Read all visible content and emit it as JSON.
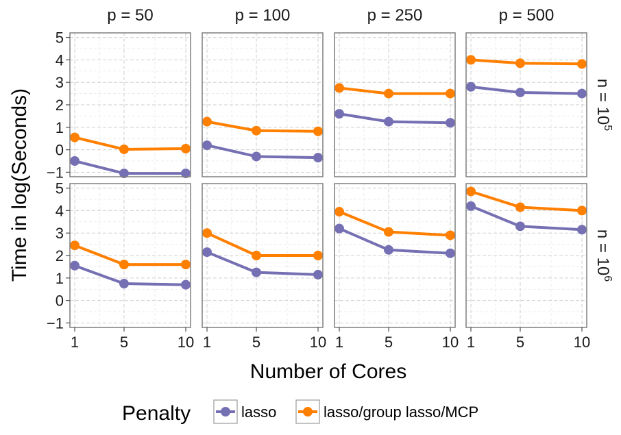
{
  "chart_data": {
    "type": "line",
    "xlabel": "Number of Cores",
    "ylabel": "Time in log(Seconds)",
    "x": [
      1,
      5,
      10
    ],
    "x_ticks": [
      "1",
      "5",
      "10"
    ],
    "ylim": [
      -1.2,
      5.2
    ],
    "y_ticks": [
      "-1",
      "0",
      "1",
      "2",
      "3",
      "4",
      "5"
    ],
    "grid": true,
    "columns": [
      "p = 50",
      "p = 100",
      "p = 250",
      "p = 500"
    ],
    "rows": [
      {
        "base": "n = 10",
        "exp": "5"
      },
      {
        "base": "n = 10",
        "exp": "6"
      }
    ],
    "legend": {
      "title": "Penalty",
      "position": "bottom",
      "entries": [
        "lasso",
        "lasso/group lasso/MCP"
      ]
    },
    "series": [
      {
        "name": "lasso",
        "color": "#7570b3",
        "panels": [
          [
            [
              -0.5,
              -1.05,
              -1.05
            ],
            [
              0.2,
              -0.3,
              -0.35
            ],
            [
              1.6,
              1.25,
              1.2
            ],
            [
              2.8,
              2.55,
              2.5
            ]
          ],
          [
            [
              1.55,
              0.75,
              0.7
            ],
            [
              2.15,
              1.25,
              1.15
            ],
            [
              3.2,
              2.25,
              2.1
            ],
            [
              4.2,
              3.3,
              3.15
            ]
          ]
        ]
      },
      {
        "name": "lasso/group lasso/MCP",
        "color": "#ff7f00",
        "panels": [
          [
            [
              0.55,
              0.02,
              0.05
            ],
            [
              1.25,
              0.85,
              0.82
            ],
            [
              2.75,
              2.5,
              2.5
            ],
            [
              4.0,
              3.85,
              3.82
            ]
          ],
          [
            [
              2.45,
              1.6,
              1.6
            ],
            [
              3.0,
              2.0,
              2.0
            ],
            [
              3.95,
              3.05,
              2.9
            ],
            [
              4.85,
              4.15,
              4.0
            ]
          ]
        ]
      }
    ]
  }
}
